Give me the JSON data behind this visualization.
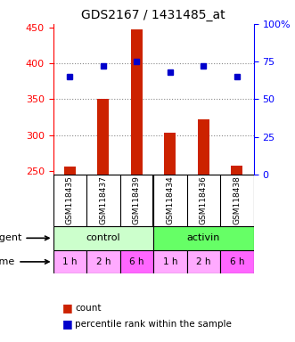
{
  "title": "GDS2167 / 1431485_at",
  "samples": [
    "GSM118435",
    "GSM118437",
    "GSM118439",
    "GSM118434",
    "GSM118436",
    "GSM118438"
  ],
  "count_values": [
    256,
    350,
    447,
    303,
    322,
    258
  ],
  "percentile_values": [
    65,
    72,
    75,
    68,
    72,
    65
  ],
  "ylim_left": [
    245,
    455
  ],
  "ylim_right": [
    0,
    100
  ],
  "yticks_left": [
    250,
    300,
    350,
    400,
    450
  ],
  "yticks_right": [
    0,
    25,
    50,
    75,
    100
  ],
  "ytick_labels_right": [
    "0",
    "25",
    "50",
    "75",
    "100%"
  ],
  "bar_color": "#cc2200",
  "dot_color": "#0000cc",
  "agent_labels": [
    "control",
    "activin"
  ],
  "agent_colors": [
    "#ccffcc",
    "#66ff66"
  ],
  "time_labels": [
    "1 h",
    "2 h",
    "6 h",
    "1 h",
    "2 h",
    "6 h"
  ],
  "time_colors": [
    "#ffaaff",
    "#ffaaff",
    "#ff66ff",
    "#ffaaff",
    "#ffaaff",
    "#ff66ff"
  ],
  "legend_count_color": "#cc2200",
  "legend_dot_color": "#0000cc",
  "background_color": "#ffffff",
  "plot_area_color": "#ffffff",
  "sample_box_color": "#cccccc",
  "grid_color": "#888888",
  "grid_yticks": [
    300,
    350,
    400
  ],
  "baseline": 245
}
